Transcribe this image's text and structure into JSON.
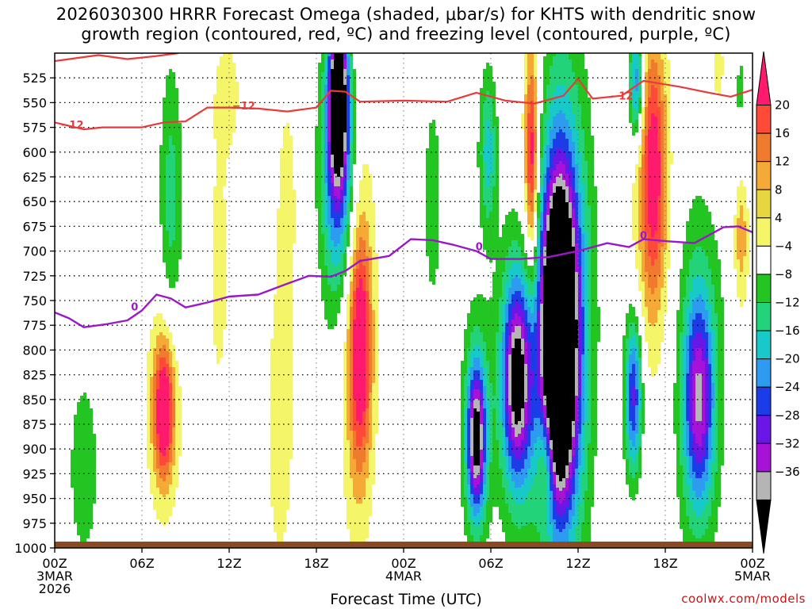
{
  "chart_data": {
    "type": "heatmap",
    "title_line1": "2026030300 HRRR Forecast Omega (shaded, μbar/s) for KHTS with dendritic snow",
    "title_line2": "growth region (contoured, red, ºC) and freezing level (contoured, purple, ºC)",
    "xlabel": "Forecast Time (UTC)",
    "credit": "coolwx.com/models",
    "x_hours": [
      0,
      48
    ],
    "x_ticks": [
      {
        "h": 0,
        "label": "00Z",
        "sub": "3MAR",
        "sub2": "2026"
      },
      {
        "h": 6,
        "label": "06Z"
      },
      {
        "h": 12,
        "label": "12Z"
      },
      {
        "h": 18,
        "label": "18Z"
      },
      {
        "h": 24,
        "label": "00Z",
        "sub": "4MAR"
      },
      {
        "h": 30,
        "label": "06Z"
      },
      {
        "h": 36,
        "label": "12Z"
      },
      {
        "h": 42,
        "label": "18Z"
      },
      {
        "h": 48,
        "label": "00Z",
        "sub": "5MAR"
      }
    ],
    "y_range_hpa": [
      500,
      1000
    ],
    "y_ticks": [
      525,
      550,
      575,
      600,
      625,
      650,
      675,
      700,
      725,
      750,
      775,
      800,
      825,
      850,
      875,
      900,
      925,
      950,
      975,
      1000
    ],
    "colorbar": {
      "labels": [
        "20",
        "16",
        "12",
        "8",
        "4",
        "-4",
        "-8",
        "-12",
        "-16",
        "-20",
        "-24",
        "-28",
        "-32",
        "-36"
      ],
      "colors": [
        "#ff1a6e",
        "#ff4a3a",
        "#f07a2e",
        "#f5aa35",
        "#e8d640",
        "#f5f56a",
        "#ffffff",
        "#22c522",
        "#22d37a",
        "#18c9c9",
        "#2d9cf0",
        "#1b3ce6",
        "#6a16e6",
        "#a712d8",
        "#b5b5b5",
        "#000000"
      ]
    },
    "omega_features": [
      {
        "h": 19.5,
        "p": 540,
        "rh": 0.6,
        "rp": 70,
        "v": -40
      },
      {
        "h": 19.5,
        "p": 600,
        "rh": 1.0,
        "rp": 110,
        "v": -22
      },
      {
        "h": 19.5,
        "p": 660,
        "rh": 1.3,
        "rp": 170,
        "v": -9
      },
      {
        "h": 34.7,
        "p": 790,
        "rh": 1.0,
        "rp": 130,
        "v": -45
      },
      {
        "h": 34.7,
        "p": 780,
        "rh": 1.6,
        "rp": 190,
        "v": -28
      },
      {
        "h": 34.9,
        "p": 760,
        "rh": 2.0,
        "rp": 280,
        "v": -12
      },
      {
        "h": 31.8,
        "p": 830,
        "rh": 0.9,
        "rp": 90,
        "v": -28
      },
      {
        "h": 31.8,
        "p": 830,
        "rh": 1.4,
        "rp": 150,
        "v": -14
      },
      {
        "h": 29.0,
        "p": 890,
        "rh": 0.6,
        "rp": 70,
        "v": -30
      },
      {
        "h": 29.0,
        "p": 880,
        "rh": 1.0,
        "rp": 120,
        "v": -12
      },
      {
        "h": 39.8,
        "p": 845,
        "rh": 0.6,
        "rp": 80,
        "v": -26
      },
      {
        "h": 44.3,
        "p": 850,
        "rh": 1.0,
        "rp": 100,
        "v": -24
      },
      {
        "h": 44.3,
        "p": 830,
        "rh": 1.6,
        "rp": 190,
        "v": -10
      },
      {
        "h": 29.8,
        "p": 600,
        "rh": 0.6,
        "rp": 80,
        "v": -14
      },
      {
        "h": 40.0,
        "p": 530,
        "rh": 0.5,
        "rp": 60,
        "v": -22
      },
      {
        "h": 8.0,
        "p": 650,
        "rh": 0.8,
        "rp": 140,
        "v": -10
      },
      {
        "h": 2.0,
        "p": 920,
        "rh": 1.3,
        "rp": 120,
        "v": -6
      },
      {
        "h": 26.0,
        "p": 650,
        "rh": 1.0,
        "rp": 180,
        "v": -5
      },
      {
        "h": 47.0,
        "p": 580,
        "rh": 1.0,
        "rp": 150,
        "v": -6
      },
      {
        "h": 21.0,
        "p": 800,
        "rh": 0.7,
        "rp": 110,
        "v": 20
      },
      {
        "h": 20.8,
        "p": 780,
        "rh": 1.4,
        "rp": 230,
        "v": 10
      },
      {
        "h": 7.5,
        "p": 860,
        "rh": 0.6,
        "rp": 60,
        "v": 20
      },
      {
        "h": 7.5,
        "p": 860,
        "rh": 1.2,
        "rp": 110,
        "v": 11
      },
      {
        "h": 32.8,
        "p": 610,
        "rh": 0.4,
        "rp": 100,
        "v": 19
      },
      {
        "h": 32.8,
        "p": 630,
        "rh": 0.9,
        "rp": 190,
        "v": 9
      },
      {
        "h": 41.2,
        "p": 620,
        "rh": 0.8,
        "rp": 120,
        "v": 17
      },
      {
        "h": 41.0,
        "p": 640,
        "rh": 1.5,
        "rp": 210,
        "v": 8
      },
      {
        "h": 47.2,
        "p": 680,
        "rh": 0.6,
        "rp": 80,
        "v": 14
      },
      {
        "h": 33.8,
        "p": 910,
        "rh": 0.6,
        "rp": 60,
        "v": 14
      },
      {
        "h": 15.5,
        "p": 880,
        "rh": 1.2,
        "rp": 180,
        "v": 6
      },
      {
        "h": 11.3,
        "p": 720,
        "rh": 1.0,
        "rp": 200,
        "v": 5
      },
      {
        "h": 16.0,
        "p": 640,
        "rh": 0.8,
        "rp": 130,
        "v": 5
      },
      {
        "h": 45.8,
        "p": 520,
        "rh": 0.9,
        "rp": 80,
        "v": 6
      },
      {
        "h": 12.0,
        "p": 540,
        "rh": 1.0,
        "rp": 60,
        "v": 5
      }
    ],
    "dgz_minus12": [
      {
        "h": 0,
        "p": 508
      },
      {
        "h": 2,
        "p": 504
      },
      {
        "h": 3,
        "p": 502
      },
      {
        "h": 5,
        "p": 506
      },
      {
        "h": 7,
        "p": 503
      },
      {
        "h": 8.5,
        "p": 500
      },
      {
        "h": 0,
        "p": 570
      },
      {
        "h": 2,
        "p": 577
      },
      {
        "h": 3.3,
        "p": 575
      },
      {
        "h": 6,
        "p": 575
      },
      {
        "h": 7.5,
        "p": 570
      },
      {
        "h": 9,
        "p": 569
      },
      {
        "h": 10.5,
        "p": 555
      },
      {
        "h": 12,
        "p": 555
      },
      {
        "h": 14,
        "p": 556
      },
      {
        "h": 16,
        "p": 559
      },
      {
        "h": 18,
        "p": 555
      },
      {
        "h": 19,
        "p": 538
      },
      {
        "h": 20,
        "p": 539
      },
      {
        "h": 21,
        "p": 549
      },
      {
        "h": 24,
        "p": 548
      },
      {
        "h": 27,
        "p": 549
      },
      {
        "h": 29,
        "p": 540
      },
      {
        "h": 31,
        "p": 548
      },
      {
        "h": 33,
        "p": 551
      },
      {
        "h": 35,
        "p": 543
      },
      {
        "h": 36,
        "p": 526
      },
      {
        "h": 37,
        "p": 546
      },
      {
        "h": 39,
        "p": 543
      },
      {
        "h": 40.5,
        "p": 528
      },
      {
        "h": 43,
        "p": 534
      },
      {
        "h": 45,
        "p": 540
      },
      {
        "h": 46.5,
        "p": 544
      },
      {
        "h": 48,
        "p": 537
      }
    ],
    "dgz_label": "-12",
    "dgz_label_points": [
      {
        "h": 1.2,
        "p": 572
      },
      {
        "h": 13.0,
        "p": 553
      },
      {
        "h": 39.0,
        "p": 543
      }
    ],
    "freezing_level": [
      {
        "h": 0,
        "p": 762
      },
      {
        "h": 1,
        "p": 768
      },
      {
        "h": 2,
        "p": 777
      },
      {
        "h": 3.5,
        "p": 774
      },
      {
        "h": 5,
        "p": 770
      },
      {
        "h": 6,
        "p": 760
      },
      {
        "h": 7,
        "p": 744
      },
      {
        "h": 8,
        "p": 748
      },
      {
        "h": 9,
        "p": 757
      },
      {
        "h": 10.5,
        "p": 752
      },
      {
        "h": 12,
        "p": 746
      },
      {
        "h": 14,
        "p": 744
      },
      {
        "h": 16,
        "p": 733
      },
      {
        "h": 17.5,
        "p": 725
      },
      {
        "h": 19,
        "p": 726
      },
      {
        "h": 20,
        "p": 720
      },
      {
        "h": 21,
        "p": 710
      },
      {
        "h": 23,
        "p": 705
      },
      {
        "h": 24.5,
        "p": 688
      },
      {
        "h": 26,
        "p": 689
      },
      {
        "h": 27.5,
        "p": 694
      },
      {
        "h": 29,
        "p": 700
      },
      {
        "h": 30,
        "p": 708
      },
      {
        "h": 32,
        "p": 708
      },
      {
        "h": 34,
        "p": 706
      },
      {
        "h": 36,
        "p": 700
      },
      {
        "h": 38,
        "p": 692
      },
      {
        "h": 39.5,
        "p": 696
      },
      {
        "h": 40.5,
        "p": 688
      },
      {
        "h": 42,
        "p": 690
      },
      {
        "h": 44,
        "p": 692
      },
      {
        "h": 46,
        "p": 676
      },
      {
        "h": 47,
        "p": 675
      },
      {
        "h": 48,
        "p": 681
      }
    ],
    "freezing_label": "0",
    "freezing_label_points": [
      {
        "h": 5.5,
        "p": 756
      },
      {
        "h": 29.2,
        "p": 695
      },
      {
        "h": 40.5,
        "p": 684
      }
    ]
  }
}
